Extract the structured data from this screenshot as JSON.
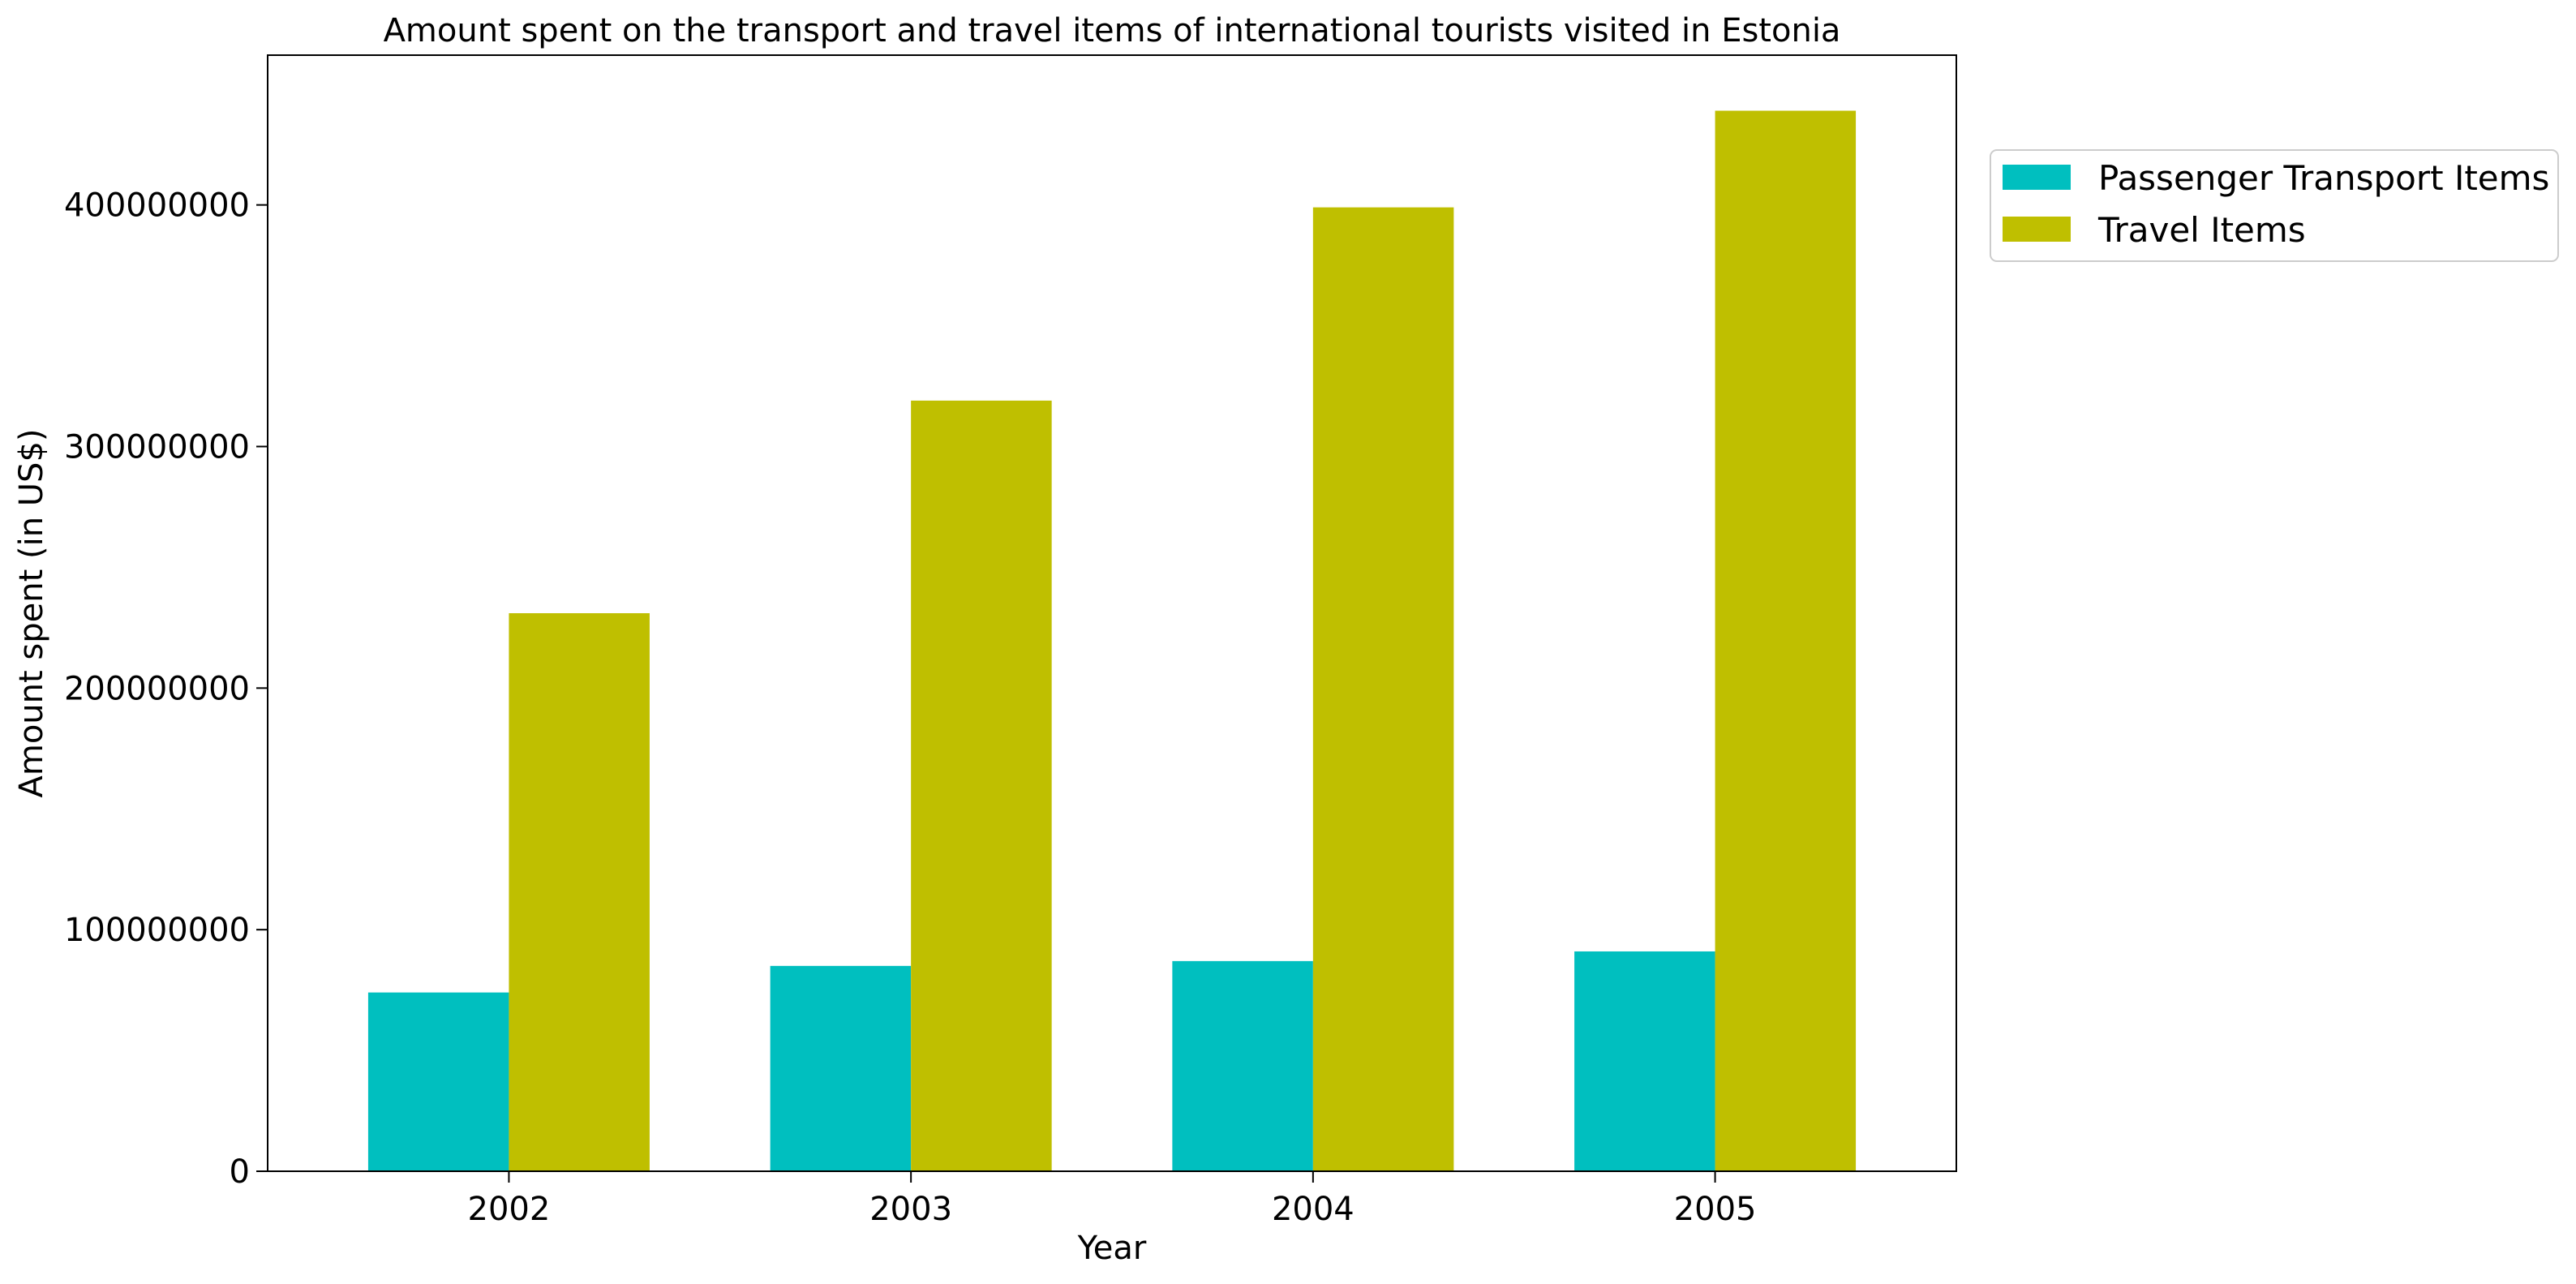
{
  "chart_data": {
    "type": "bar",
    "title": "Amount spent on the transport and travel items of international tourists visited in Estonia",
    "xlabel": "Year",
    "ylabel": "Amount spent (in US$)",
    "categories": [
      "2002",
      "2003",
      "2004",
      "2005"
    ],
    "series": [
      {
        "name": "Passenger Transport Items",
        "color": "#00bfbf",
        "values": [
          74000000,
          85000000,
          87000000,
          91000000
        ]
      },
      {
        "name": "Travel Items",
        "color": "#bfbf00",
        "values": [
          231000000,
          319000000,
          399000000,
          439000000
        ]
      }
    ],
    "ylim": [
      0,
      462000000
    ],
    "yticks": [
      0,
      100000000,
      200000000,
      300000000,
      400000000
    ],
    "ytick_labels": [
      "0",
      "100000000",
      "200000000",
      "300000000",
      "400000000"
    ],
    "grid": false,
    "legend_position": "outside-top-right"
  }
}
